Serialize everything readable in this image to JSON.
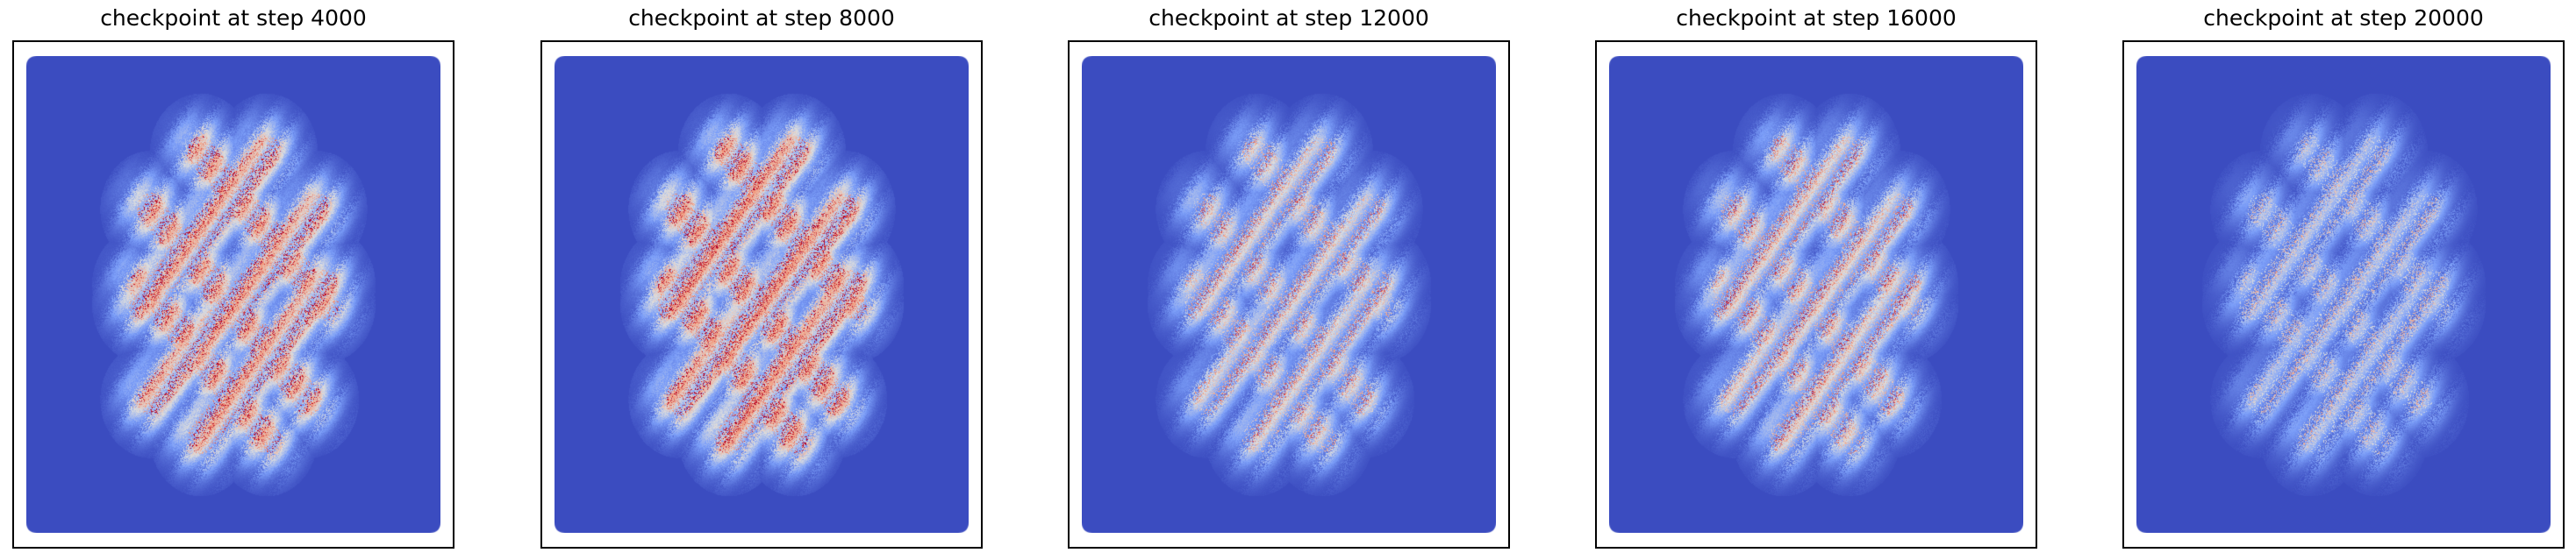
{
  "figure": {
    "colormap": "coolwarm",
    "background_color": "#3b4cc0",
    "axes_ticks": "hidden"
  },
  "chart_data": [
    {
      "type": "heatmap",
      "title": "checkpoint at step 4000",
      "step": 4000,
      "intensity": 0.95
    },
    {
      "type": "heatmap",
      "title": "checkpoint at step 8000",
      "step": 8000,
      "intensity": 1.0
    },
    {
      "type": "heatmap",
      "title": "checkpoint at step 12000",
      "step": 12000,
      "intensity": 0.7
    },
    {
      "type": "heatmap",
      "title": "checkpoint at step 16000",
      "step": 16000,
      "intensity": 0.75
    },
    {
      "type": "heatmap",
      "title": "checkpoint at step 20000",
      "step": 20000,
      "intensity": 0.55
    }
  ]
}
